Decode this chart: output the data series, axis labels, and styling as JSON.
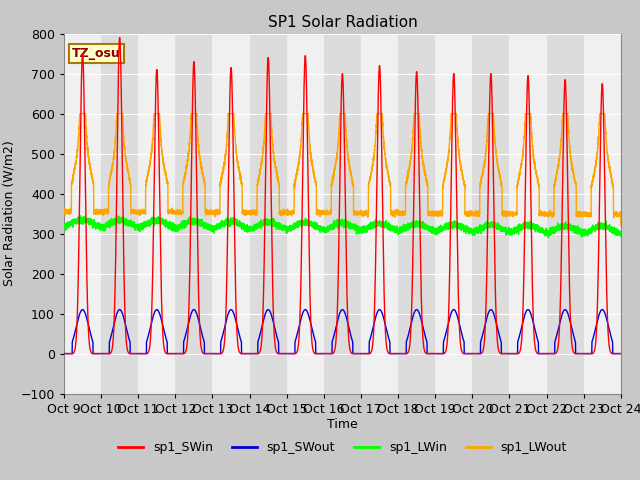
{
  "title": "SP1 Solar Radiation",
  "ylabel": "Solar Radiation (W/m2)",
  "xlabel": "Time",
  "ylim": [
    -100,
    800
  ],
  "xlim": [
    0,
    360
  ],
  "tz_label": "TZ_osu",
  "series_colors": {
    "sp1_SWin": "#ff0000",
    "sp1_SWout": "#0000dd",
    "sp1_LWin": "#00ff00",
    "sp1_LWout": "#ffa500"
  },
  "xtick_labels": [
    "Oct 9",
    "Oct 10",
    "Oct 11",
    "Oct 12",
    "Oct 13",
    "Oct 14",
    "Oct 15",
    "Oct 16",
    "Oct 17",
    "Oct 18",
    "Oct 19",
    "Oct 20",
    "Oct 21",
    "Oct 22",
    "Oct 23",
    "Oct 24"
  ],
  "xtick_positions": [
    0,
    24,
    48,
    72,
    96,
    120,
    144,
    168,
    192,
    216,
    240,
    264,
    288,
    312,
    336,
    360
  ],
  "ytick_values": [
    -100,
    0,
    100,
    200,
    300,
    400,
    500,
    600,
    700,
    800
  ],
  "sw_in_peaks": [
    750,
    790,
    710,
    730,
    715,
    740,
    745,
    700,
    720,
    705,
    700,
    700,
    695,
    685,
    675
  ],
  "lw_in_base": 315,
  "lw_out_base": 355,
  "band_colors": [
    "#f0f0f0",
    "#dcdcdc"
  ],
  "fig_bg": "#c8c8c8",
  "ax_bg": "#e0e0e0",
  "grid_color": "#ffffff"
}
